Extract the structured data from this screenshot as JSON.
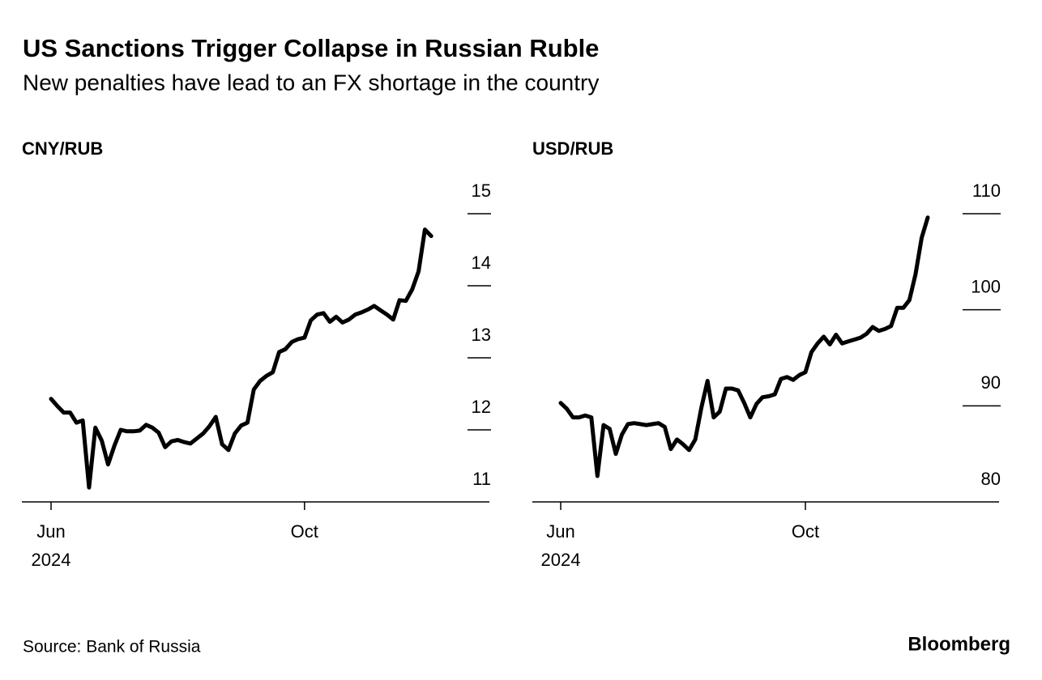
{
  "title": "US Sanctions Trigger Collapse in Russian Ruble",
  "subtitle": "New penalties have lead to an FX shortage in the country",
  "source": "Source: Bank of Russia",
  "brand": "Bloomberg",
  "chart_data": [
    {
      "type": "line",
      "title": "CNY/RUB",
      "categories": [
        "Jun",
        null,
        null,
        null,
        null,
        null,
        null,
        null,
        null,
        null,
        null,
        null,
        null,
        null,
        null,
        null,
        null,
        null,
        null,
        null,
        null,
        null,
        null,
        null,
        null,
        null,
        null,
        null,
        null,
        null,
        null,
        null,
        null,
        null,
        null,
        null,
        null,
        null,
        null,
        null,
        "Oct",
        null,
        null,
        null,
        null,
        null,
        null,
        null,
        null,
        null,
        null,
        null,
        null,
        null,
        null,
        null,
        null,
        null,
        null,
        null,
        null
      ],
      "year_label": "2024",
      "series": [
        {
          "name": "CNY/RUB",
          "color": "#000000",
          "values": [
            12.43,
            12.33,
            12.24,
            12.24,
            12.1,
            12.13,
            11.2,
            12.03,
            11.85,
            11.52,
            11.78,
            12.0,
            11.98,
            11.98,
            11.99,
            12.07,
            12.03,
            11.96,
            11.76,
            11.84,
            11.86,
            11.83,
            11.81,
            11.88,
            11.95,
            12.05,
            12.18,
            11.8,
            11.72,
            11.95,
            12.06,
            12.1,
            12.56,
            12.68,
            12.75,
            12.8,
            13.08,
            13.12,
            13.22,
            13.26,
            13.28,
            13.52,
            13.6,
            13.62,
            13.5,
            13.57,
            13.49,
            13.53,
            13.6,
            13.63,
            13.67,
            13.72,
            13.66,
            13.6,
            13.53,
            13.8,
            13.79,
            13.95,
            14.2,
            14.78,
            14.69
          ]
        }
      ],
      "ylim": [
        11,
        15
      ],
      "yticks": [
        11,
        12,
        13,
        14,
        15
      ]
    },
    {
      "type": "line",
      "title": "USD/RUB",
      "categories": [
        "Jun",
        null,
        null,
        null,
        null,
        null,
        null,
        null,
        null,
        null,
        null,
        null,
        null,
        null,
        null,
        null,
        null,
        null,
        null,
        null,
        null,
        null,
        null,
        null,
        null,
        null,
        null,
        null,
        null,
        null,
        null,
        null,
        null,
        null,
        null,
        null,
        null,
        null,
        null,
        null,
        "Oct",
        null,
        null,
        null,
        null,
        null,
        null,
        null,
        null,
        null,
        null,
        null,
        null,
        null,
        null,
        null,
        null,
        null,
        null,
        null,
        null
      ],
      "year_label": "2024",
      "series": [
        {
          "name": "USD/RUB",
          "color": "#000000",
          "values": [
            90.3,
            89.7,
            88.8,
            88.8,
            89.0,
            88.8,
            82.7,
            88.0,
            87.6,
            85.0,
            87.0,
            88.1,
            88.2,
            88.1,
            88.0,
            88.1,
            88.2,
            87.8,
            85.5,
            86.5,
            86.0,
            85.4,
            86.5,
            89.8,
            92.6,
            88.8,
            89.4,
            91.8,
            91.8,
            91.6,
            90.3,
            88.8,
            90.2,
            90.9,
            91.0,
            91.2,
            92.8,
            93.0,
            92.7,
            93.2,
            93.5,
            95.6,
            96.5,
            97.2,
            96.4,
            97.4,
            96.5,
            96.7,
            96.9,
            97.1,
            97.5,
            98.2,
            97.8,
            98.0,
            98.3,
            100.2,
            100.2,
            101.0,
            103.7,
            107.5,
            109.6
          ]
        }
      ],
      "ylim": [
        80,
        110
      ],
      "yticks": [
        80,
        90,
        100,
        110
      ]
    }
  ]
}
